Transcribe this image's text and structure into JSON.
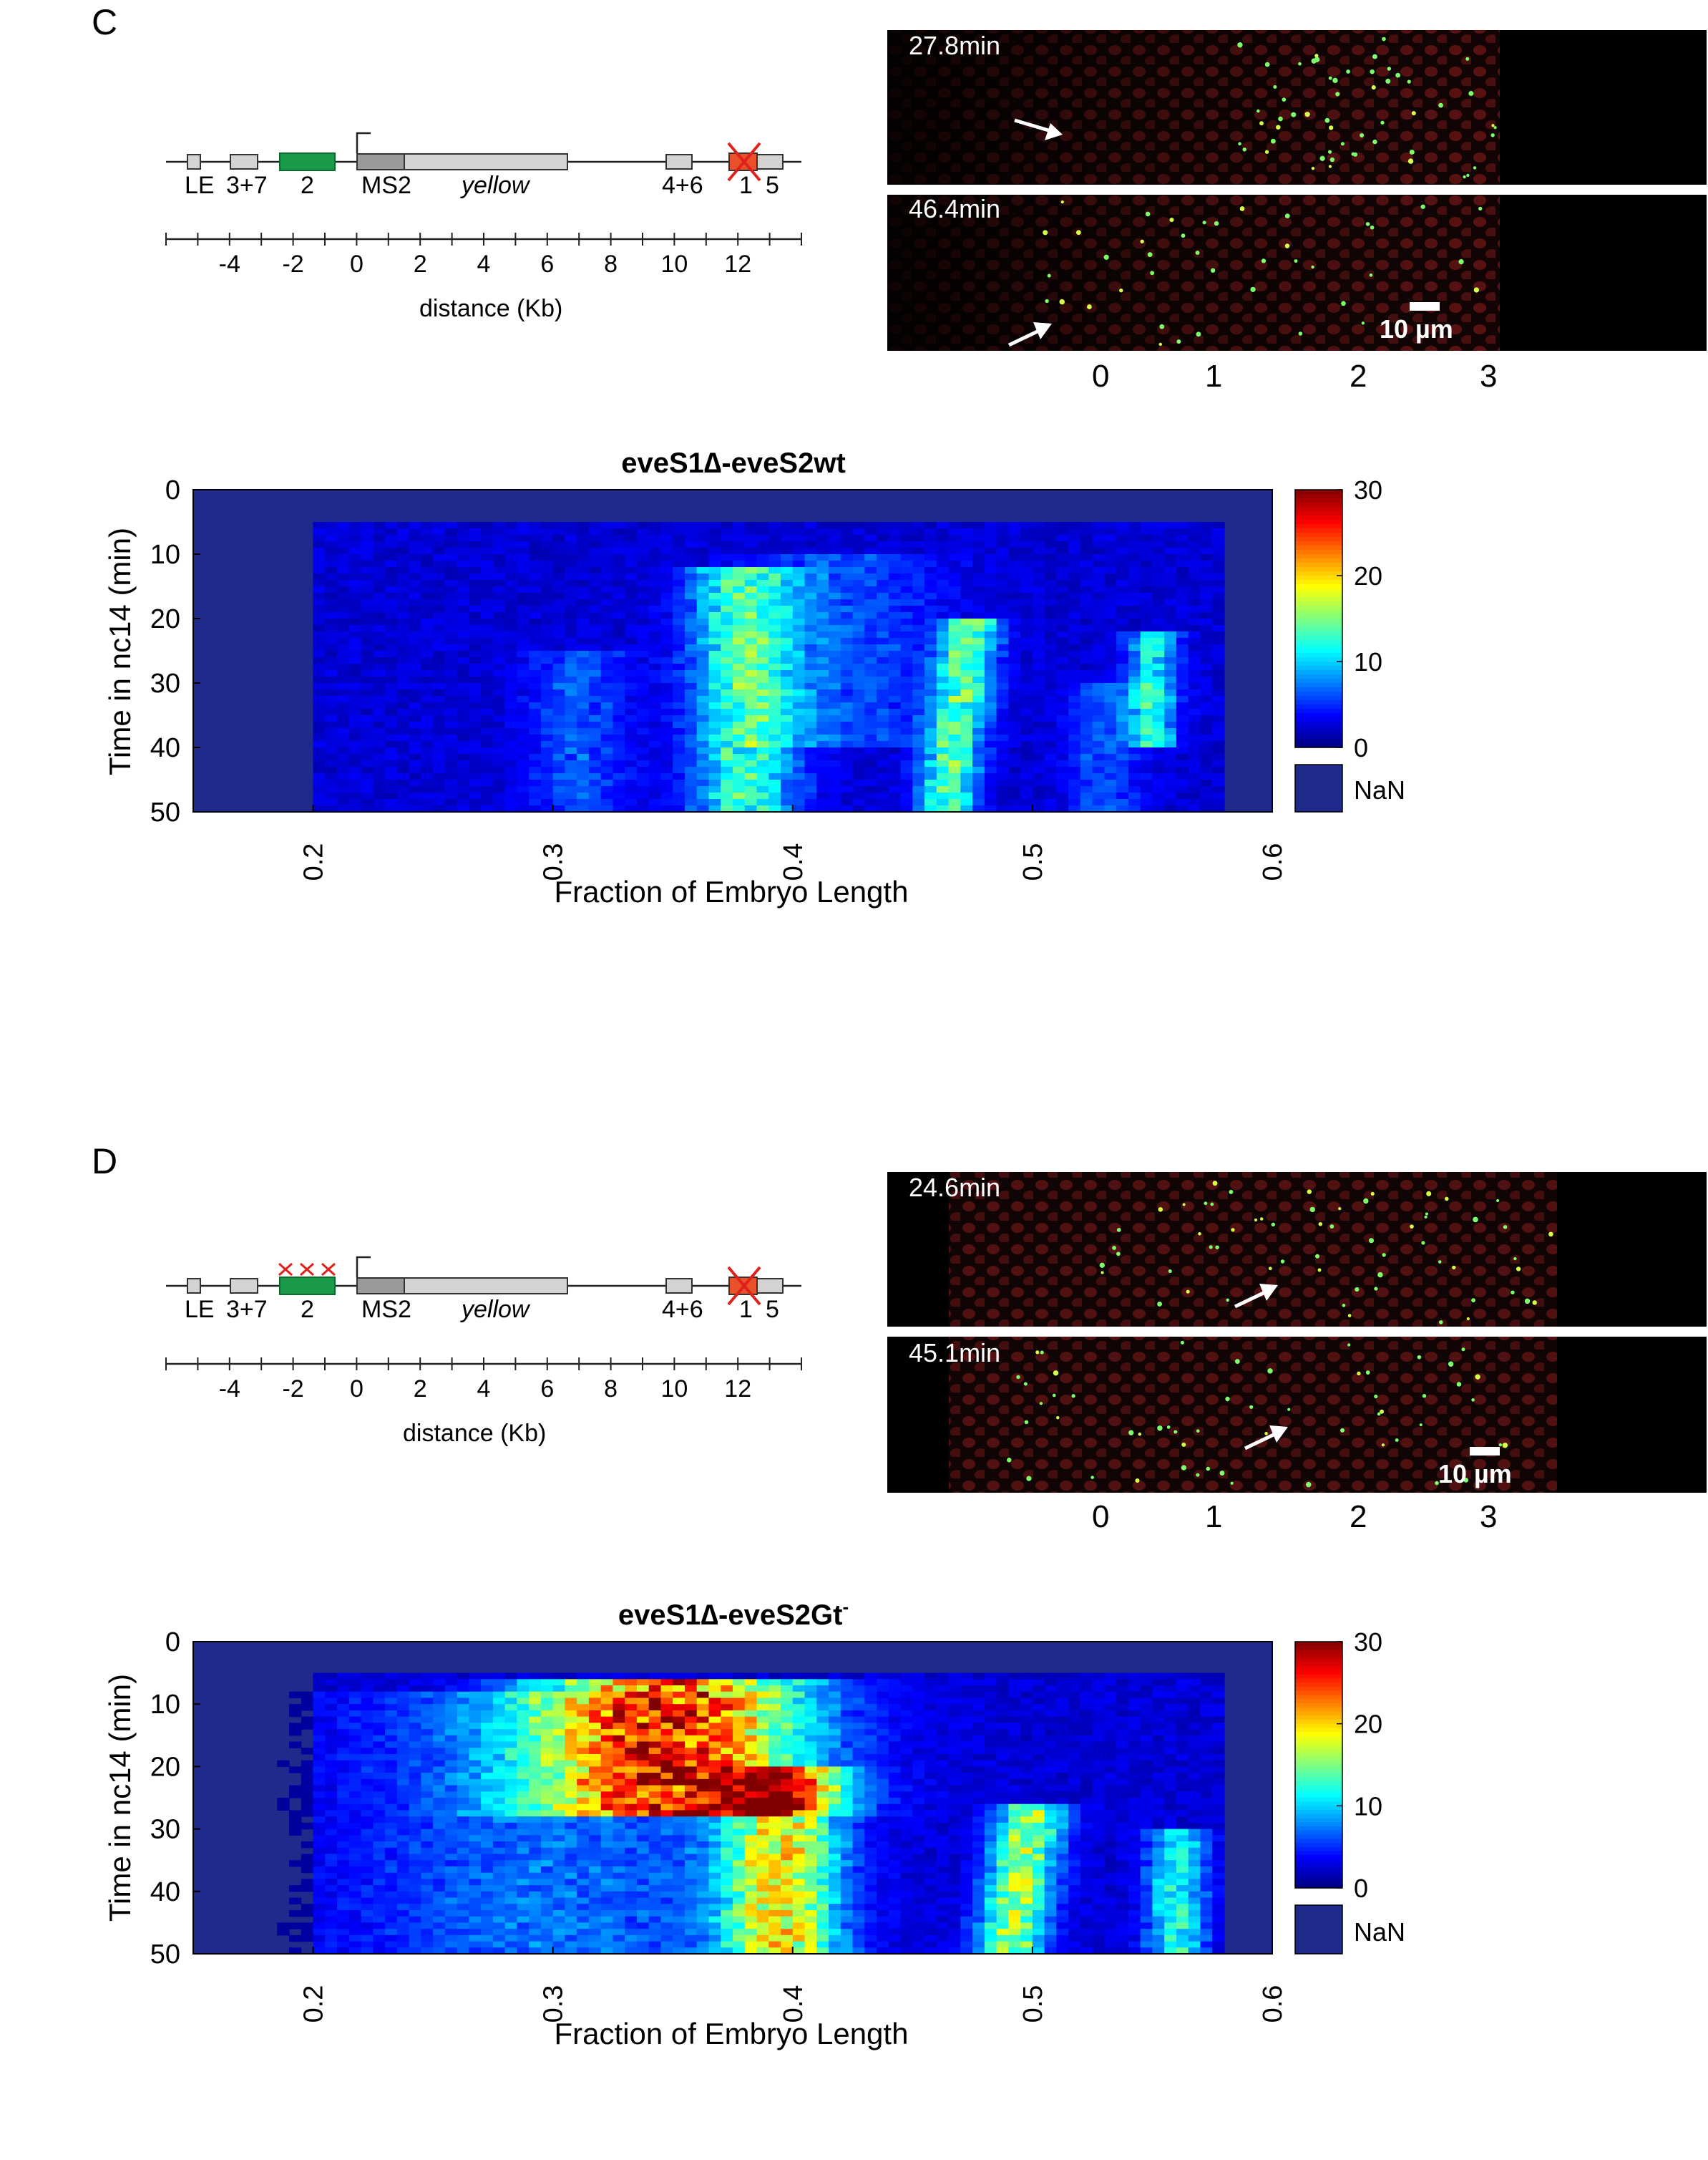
{
  "panels": [
    {
      "label": "C",
      "gene": {
        "enhancers": [
          "LE",
          "3+7",
          "2",
          "MS2",
          "yellow",
          "4+6",
          "1",
          "5"
        ],
        "distance_ticks": [
          "-4",
          "-2",
          "0",
          "2",
          "4",
          "6",
          "8",
          "10",
          "12"
        ],
        "distance_label": "distance (Kb)",
        "stripe2_crosses": false
      },
      "micrographs": {
        "frames": [
          {
            "time": "27.8min"
          },
          {
            "time": "46.4min"
          }
        ],
        "scale_bar": "10 µm",
        "stripe_numbers": [
          "0",
          "1",
          "2",
          "3"
        ]
      },
      "heatmap": {
        "title": "eveS1∆-eveS2wt",
        "title_sup": "",
        "ylabel": "Time in nc14 (min)",
        "xlabel": "Fraction of Embryo Length",
        "yticks": [
          "0",
          "10",
          "20",
          "30",
          "40",
          "50"
        ],
        "xticks": [
          "0.2",
          "0.3",
          "0.4",
          "0.5",
          "0.6"
        ],
        "colorbar_ticks": [
          "30",
          "20",
          "10",
          "0"
        ],
        "nan_label": "NaN"
      }
    },
    {
      "label": "D",
      "gene": {
        "enhancers": [
          "LE",
          "3+7",
          "2",
          "MS2",
          "yellow",
          "4+6",
          "1",
          "5"
        ],
        "distance_ticks": [
          "-4",
          "-2",
          "0",
          "2",
          "4",
          "6",
          "8",
          "10",
          "12"
        ],
        "distance_label": "distance (Kb)",
        "stripe2_crosses": true
      },
      "micrographs": {
        "frames": [
          {
            "time": "24.6min"
          },
          {
            "time": "45.1min"
          }
        ],
        "scale_bar": "10 µm",
        "stripe_numbers": [
          "0",
          "1",
          "2",
          "3"
        ]
      },
      "heatmap": {
        "title": "eveS1∆-eveS2Gt",
        "title_sup": "-",
        "ylabel": "Time in nc14 (min)",
        "xlabel": "Fraction of Embryo Length",
        "yticks": [
          "0",
          "10",
          "20",
          "30",
          "40",
          "50"
        ],
        "xticks": [
          "0.2",
          "0.3",
          "0.4",
          "0.5",
          "0.6"
        ],
        "colorbar_ticks": [
          "30",
          "20",
          "10",
          "0"
        ],
        "nan_label": "NaN"
      }
    }
  ],
  "colors": {
    "stripe2_enhancer": "#1a9a48",
    "deleted_stripe1": "#e8512a",
    "cross": "#e0201b",
    "gene_box": "#d3d3d3",
    "ms2_box": "#9a9a9a",
    "heatmap_background": "#1f2a8a",
    "nan": "#1f2a8a"
  }
}
